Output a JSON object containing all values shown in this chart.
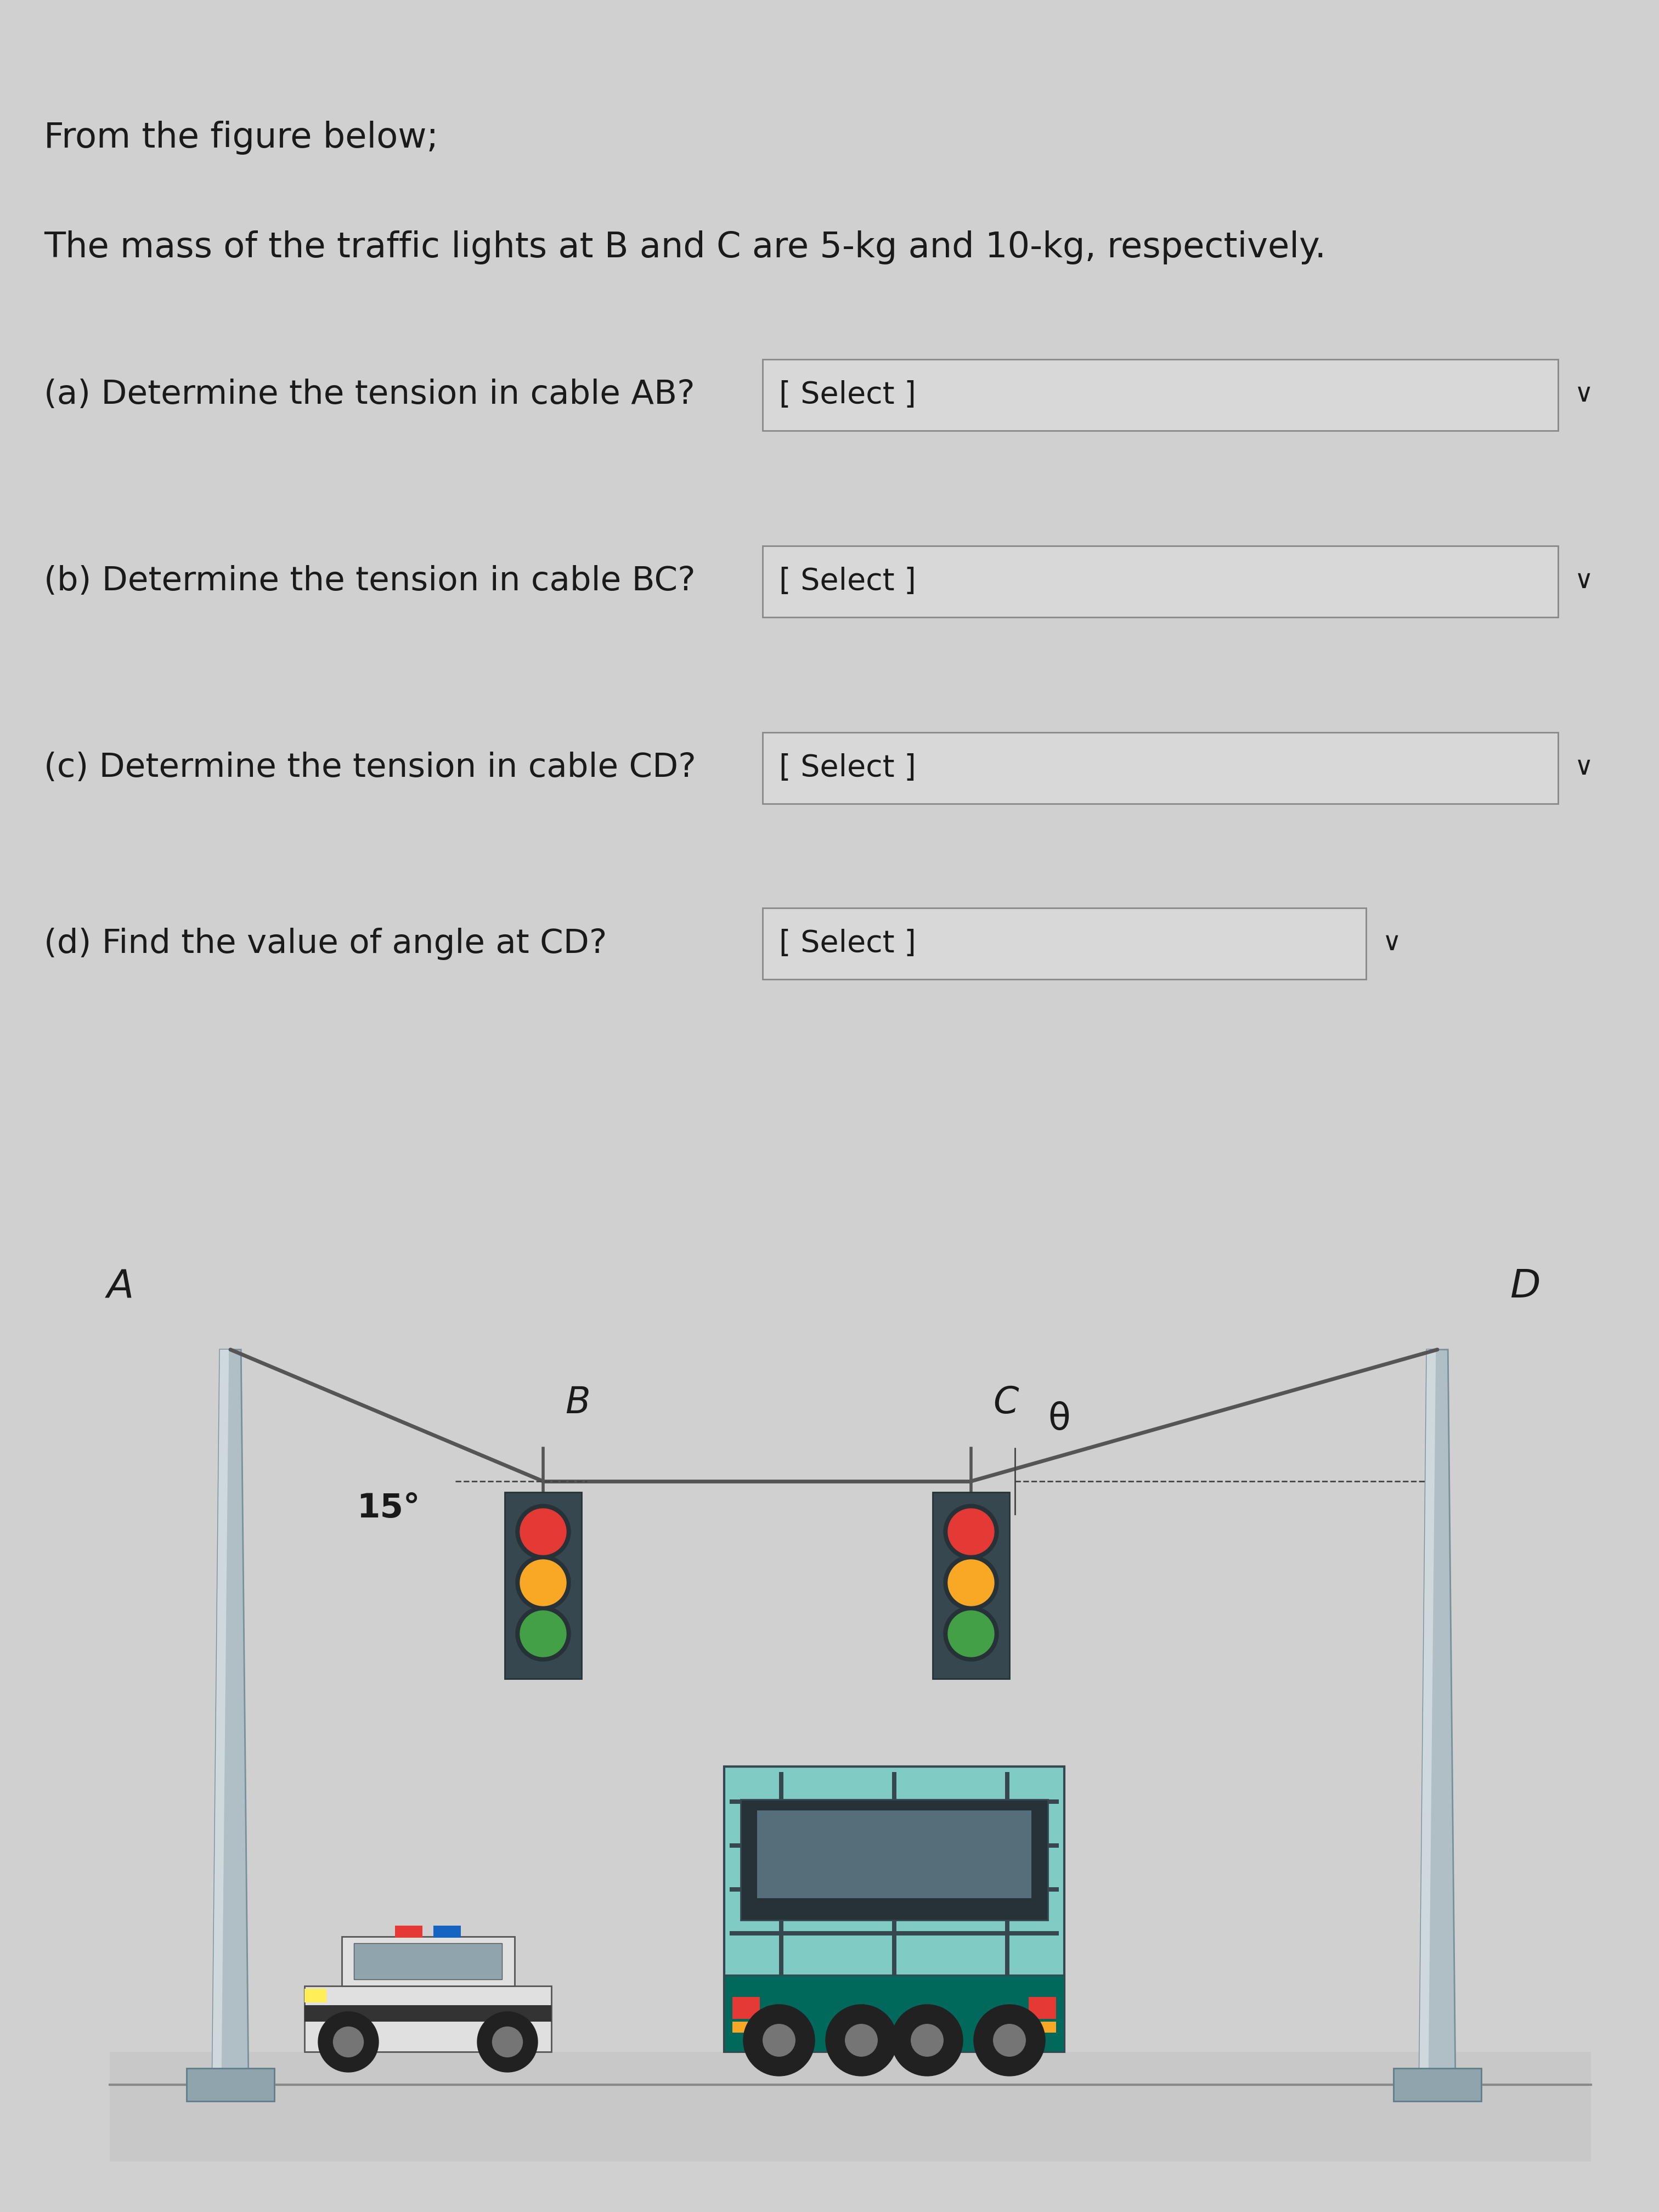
{
  "bg_color": "#d0d0d0",
  "text_color": "#1a1a1a",
  "line1": "From the figure below;",
  "line2": "The mass of the traffic lights at B and C are 5-kg and 10-kg, respectively.",
  "qa": "(a) Determine the tension in cable AB?",
  "qb": "(b) Determine the tension in cable BC?",
  "qc": "(c) Determine the tension in cable CD?",
  "qd": "(d) Find the value of angle at CD?",
  "select_label": "[ Select ]",
  "fig_label_A": "A",
  "fig_label_B": "B",
  "fig_label_C": "C",
  "fig_label_D": "D",
  "angle_label": "15°",
  "theta_label": "θ",
  "chevron": "∨"
}
